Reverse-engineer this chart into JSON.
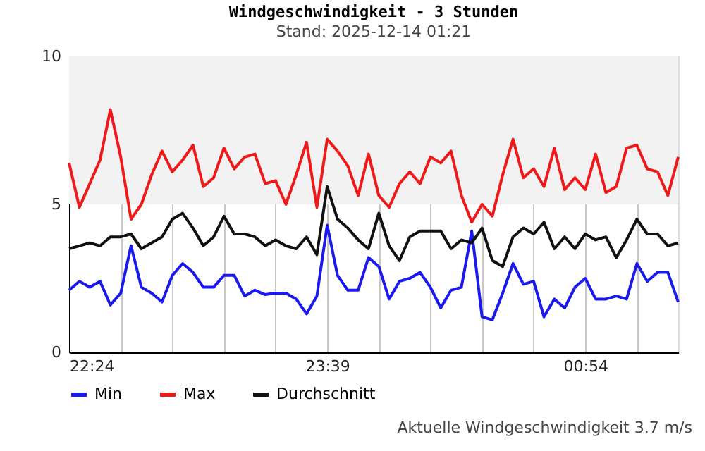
{
  "chart_data": {
    "type": "line",
    "title": "Windgeschwindigkeit - 3 Stunden",
    "subtitle": "Stand: 2025-12-14 01:21",
    "x": [
      "2025-12-13T22:24",
      "2025-12-13T22:27",
      "2025-12-13T22:30",
      "2025-12-13T22:33",
      "2025-12-13T22:36",
      "2025-12-13T22:39",
      "2025-12-13T22:42",
      "2025-12-13T22:45",
      "2025-12-13T22:48",
      "2025-12-13T22:51",
      "2025-12-13T22:54",
      "2025-12-13T22:57",
      "2025-12-13T23:00",
      "2025-12-13T23:03",
      "2025-12-13T23:06",
      "2025-12-13T23:09",
      "2025-12-13T23:12",
      "2025-12-13T23:15",
      "2025-12-13T23:18",
      "2025-12-13T23:21",
      "2025-12-13T23:24",
      "2025-12-13T23:27",
      "2025-12-13T23:30",
      "2025-12-13T23:33",
      "2025-12-13T23:36",
      "2025-12-13T23:39",
      "2025-12-13T23:42",
      "2025-12-13T23:45",
      "2025-12-13T23:48",
      "2025-12-13T23:51",
      "2025-12-13T23:54",
      "2025-12-13T23:57",
      "2025-12-14T00:00",
      "2025-12-14T00:03",
      "2025-12-14T00:06",
      "2025-12-14T00:09",
      "2025-12-14T00:12",
      "2025-12-14T00:15",
      "2025-12-14T00:18",
      "2025-12-14T00:21",
      "2025-12-14T00:24",
      "2025-12-14T00:27",
      "2025-12-14T00:30",
      "2025-12-14T00:33",
      "2025-12-14T00:36",
      "2025-12-14T00:39",
      "2025-12-14T00:42",
      "2025-12-14T00:45",
      "2025-12-14T00:48",
      "2025-12-14T00:51",
      "2025-12-14T00:54",
      "2025-12-14T00:57",
      "2025-12-14T01:00",
      "2025-12-14T01:03",
      "2025-12-14T01:06",
      "2025-12-14T01:09",
      "2025-12-14T01:12",
      "2025-12-14T01:15",
      "2025-12-14T01:18",
      "2025-12-14T01:21"
    ],
    "series": [
      {
        "name": "Min",
        "color": "#1a1aee",
        "values": [
          2.1,
          2.4,
          2.2,
          2.4,
          1.6,
          2.0,
          3.6,
          2.2,
          2.0,
          1.7,
          2.6,
          3.0,
          2.7,
          2.2,
          2.2,
          2.6,
          2.6,
          1.9,
          2.1,
          1.95,
          2.0,
          2.0,
          1.8,
          1.3,
          1.9,
          4.3,
          2.6,
          2.1,
          2.1,
          3.2,
          2.9,
          1.8,
          2.4,
          2.5,
          2.7,
          2.2,
          1.5,
          2.1,
          2.2,
          4.1,
          1.2,
          1.1,
          2.0,
          3.0,
          2.3,
          2.4,
          1.2,
          1.8,
          1.5,
          2.2,
          2.5,
          1.8,
          1.8,
          1.9,
          1.8,
          3.0,
          2.4,
          2.7,
          2.7,
          1.7
        ]
      },
      {
        "name": "Max",
        "color": "#ee1a1a",
        "values": [
          6.4,
          4.9,
          5.7,
          6.5,
          8.2,
          6.6,
          4.5,
          5.0,
          6.0,
          6.8,
          6.1,
          6.5,
          7.0,
          5.6,
          5.9,
          6.9,
          6.2,
          6.6,
          6.7,
          5.7,
          5.8,
          5.0,
          6.0,
          7.1,
          4.9,
          7.2,
          6.8,
          6.3,
          5.3,
          6.7,
          5.3,
          4.9,
          5.7,
          6.1,
          5.7,
          6.6,
          6.4,
          6.8,
          5.3,
          4.4,
          5.0,
          4.6,
          6.0,
          7.2,
          5.9,
          6.2,
          5.6,
          6.9,
          5.5,
          5.9,
          5.5,
          6.7,
          5.4,
          5.6,
          6.9,
          7.0,
          6.2,
          6.1,
          5.3,
          6.6
        ]
      },
      {
        "name": "Durchschnitt",
        "color": "#111111",
        "values": [
          3.5,
          3.6,
          3.7,
          3.6,
          3.9,
          3.9,
          4.0,
          3.5,
          3.7,
          3.9,
          4.5,
          4.7,
          4.2,
          3.6,
          3.9,
          4.6,
          4.0,
          4.0,
          3.9,
          3.6,
          3.8,
          3.6,
          3.5,
          3.9,
          3.3,
          5.6,
          4.5,
          4.2,
          3.8,
          3.5,
          4.7,
          3.6,
          3.1,
          3.9,
          4.1,
          4.1,
          4.1,
          3.5,
          3.8,
          3.7,
          4.2,
          3.1,
          2.9,
          3.9,
          4.2,
          4.0,
          4.4,
          3.5,
          3.9,
          3.5,
          4.0,
          3.8,
          3.9,
          3.2,
          3.8,
          4.5,
          4.0,
          4.0,
          3.6,
          3.7
        ]
      }
    ],
    "xlim": [
      "2025-12-13T22:24",
      "2025-12-14T01:21"
    ],
    "xticks": [
      {
        "value": "2025-12-13T22:24",
        "label": "22:24"
      },
      {
        "value": "2025-12-13T22:39",
        "label": null
      },
      {
        "value": "2025-12-13T22:54",
        "label": null
      },
      {
        "value": "2025-12-13T23:09",
        "label": null
      },
      {
        "value": "2025-12-13T23:24",
        "label": null
      },
      {
        "value": "2025-12-13T23:39",
        "label": "23:39"
      },
      {
        "value": "2025-12-13T23:54",
        "label": null
      },
      {
        "value": "2025-12-14T00:09",
        "label": null
      },
      {
        "value": "2025-12-14T00:24",
        "label": null
      },
      {
        "value": "2025-12-14T00:39",
        "label": null
      },
      {
        "value": "2025-12-14T00:54",
        "label": "00:54"
      },
      {
        "value": "2025-12-14T01:09",
        "label": null
      }
    ],
    "ylim": [
      0,
      10
    ],
    "yticks": [
      0,
      5,
      10
    ],
    "bands": [
      {
        "axis": "y",
        "from": 5,
        "to": 10,
        "color": "#f2f2f2"
      }
    ],
    "grid": "x",
    "legend": "bottom",
    "line_style": "solid",
    "marker": "none",
    "annotations": [
      "Aktuelle Windgeschwindigkeit 3.7 m/s"
    ]
  }
}
